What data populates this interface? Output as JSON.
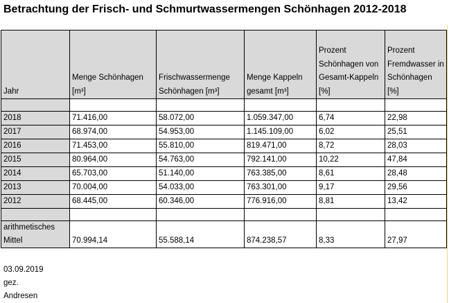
{
  "title": "Betrachtung der Frisch- und Schmurtwassermengen Schönhagen 2012-2018",
  "headers": [
    "Jahr",
    "Menge Schönhagen [m³]",
    "Frischwassermenge Schönhagen [m³]",
    "Menge Kappeln gesamt [m³]",
    "Prozent Schönhagen von Gesamt-Kappeln [%]",
    "Prozent Fremdwasser in Schönhagen [%]"
  ],
  "rows": [
    [
      "2018",
      "71.416,00",
      "58.072,00",
      "1.059.347,00",
      "6,74",
      "22,98"
    ],
    [
      "2017",
      "68.974,00",
      "54.953,00",
      "1.145.109,00",
      "6,02",
      "25,51"
    ],
    [
      "2016",
      "71.453,00",
      "55.810,00",
      "819.471,00",
      "8,72",
      "28,03"
    ],
    [
      "2015",
      "80.964,00",
      "54.763,00",
      "792.141,00",
      "10,22",
      "47,84"
    ],
    [
      "2014",
      "65.703,00",
      "51.140,00",
      "763.385,00",
      "8,61",
      "28,48"
    ],
    [
      "2013",
      "70.004,00",
      "54.033,00",
      "763.301,00",
      "9,17",
      "29,56"
    ],
    [
      "2012",
      "68.445,00",
      "60.346,00",
      "776.916,00",
      "8,81",
      "13,42"
    ]
  ],
  "mean": [
    "arithmetisches Mittel",
    "70.994,14",
    "55.588,14",
    "874.238,57",
    "8,33",
    "27,97"
  ],
  "footer": {
    "date": "03.09.2019",
    "signed": "gez.",
    "name": "Andresen"
  }
}
